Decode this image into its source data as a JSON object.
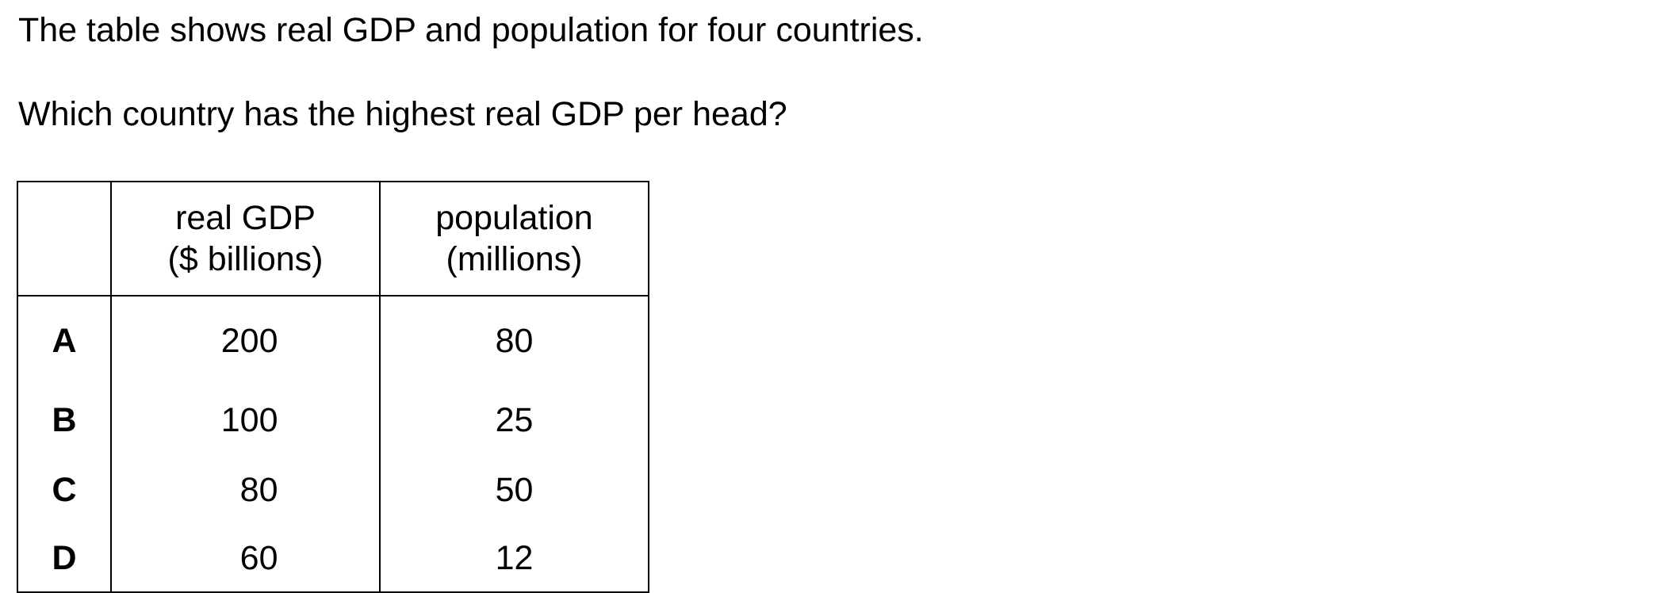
{
  "intro_text": "The table shows real GDP and population for four countries.",
  "question_text": "Which country has the highest real GDP per head?",
  "table": {
    "headers": {
      "gdp_line1": "real GDP",
      "gdp_line2": "($ billions)",
      "pop_line1": "population",
      "pop_line2": "(millions)"
    },
    "rows": [
      {
        "label": "A",
        "gdp": "200",
        "population": "80"
      },
      {
        "label": "B",
        "gdp": "100",
        "population": "25"
      },
      {
        "label": "C",
        "gdp": "80",
        "population": "50"
      },
      {
        "label": "D",
        "gdp": "60",
        "population": "12"
      }
    ]
  }
}
